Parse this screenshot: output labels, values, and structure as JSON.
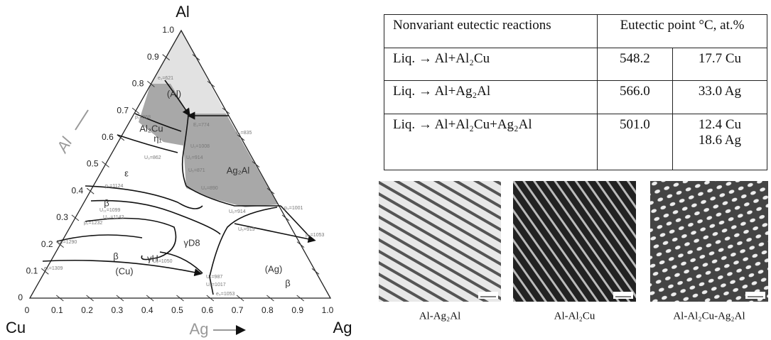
{
  "diagram": {
    "corners": {
      "top": "Al",
      "left": "Cu",
      "right": "Ag"
    },
    "axis_titles": {
      "left": "Al",
      "bottom": "Ag"
    },
    "left_tick_labels": [
      "0",
      "0.1",
      "0.2",
      "0.3",
      "0.4",
      "0.5",
      "0.6",
      "0.7",
      "0.8",
      "0.9",
      "1.0"
    ],
    "bottom_tick_labels": [
      "0",
      "0.1",
      "0.2",
      "0.3",
      "0.4",
      "0.5",
      "0.6",
      "0.7",
      "0.8",
      "0.9",
      "1.0"
    ],
    "regions": [
      "(Al)",
      "Al₂Cu",
      "Ag₂Al",
      "η₁",
      "ε",
      "β",
      "γH",
      "γD8",
      "(Cu)",
      "(Ag)",
      "β",
      "β"
    ],
    "points": [
      "e₁=621",
      "p₁=868",
      "E₁=774",
      "e₂=835",
      "U₁=1008",
      "U₂=914",
      "U₃=862",
      "U₅=871",
      "U₄=890",
      "p₁=1124",
      "U₁₁=1099",
      "U₁₀=1142",
      "p₂=1232",
      "p₂=1290",
      "e₃=1309",
      "U₉=1050",
      "U₇=987",
      "U₈=1017",
      "U₆=914",
      "U₅=919",
      "p₃=1001",
      "p₅=1053",
      "e₄=1053"
    ]
  },
  "table": {
    "header": [
      "Nonvariant eutectic reactions",
      "Eutectic point °C, at.%"
    ],
    "rows": [
      [
        "Liq. → Al+Al₂Cu",
        "548.2",
        [
          "17.7 Cu"
        ]
      ],
      [
        "Liq. → Al+Ag₂Al",
        "566.0",
        [
          "33.0 Ag"
        ]
      ],
      [
        "Liq. → Al+Al₂Cu+Ag₂Al",
        "501.0",
        [
          "12.4 Cu",
          "18.6 Ag"
        ]
      ]
    ]
  },
  "micrographs": [
    "Al-Ag₂Al",
    "Al-Al₂Cu",
    "Al-Al₂Cu-Ag₂Al"
  ]
}
